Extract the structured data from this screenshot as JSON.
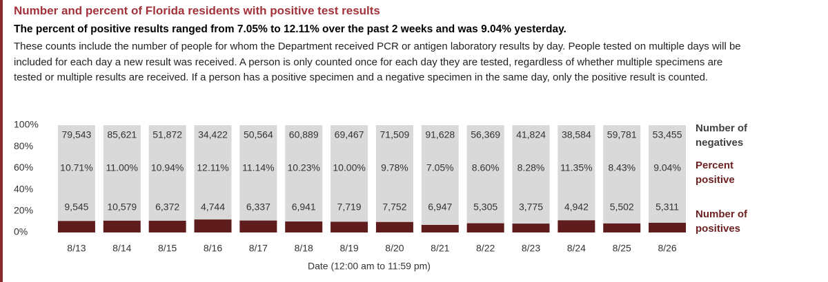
{
  "chart_data": {
    "type": "bar",
    "title": "Number and percent of Florida residents with positive test results",
    "subtitle": "The percent of positive results ranged from 7.05% to 12.11% over the past 2 weeks and was 9.04% yesterday.",
    "description": "These counts include the number of people for whom the Department received PCR or antigen laboratory results by day. People tested on multiple days will be included for each day a new result was received. A person is only counted once for each day they are tested, regardless of whether multiple specimens are tested or multiple results are received. If a person has a positive specimen and a negative specimen in the same day, only the positive result is counted.",
    "x_label": "Date (12:00 am to 11:59 pm)",
    "categories": [
      "8/13",
      "8/14",
      "8/15",
      "8/16",
      "8/17",
      "8/18",
      "8/19",
      "8/20",
      "8/21",
      "8/22",
      "8/23",
      "8/24",
      "8/25",
      "8/26"
    ],
    "series": [
      {
        "name": "Number of negatives",
        "color": "#d9d9d9",
        "values": [
          79543,
          85621,
          51872,
          34422,
          50564,
          60889,
          69467,
          71509,
          91628,
          56369,
          41824,
          38584,
          59781,
          53455
        ],
        "value_labels": [
          "79,543",
          "85,621",
          "51,872",
          "34,422",
          "50,564",
          "60,889",
          "69,467",
          "71,509",
          "91,628",
          "56,369",
          "41,824",
          "38,584",
          "59,781",
          "53,455"
        ]
      },
      {
        "name": "Percent positive",
        "color": "#5e1c1c",
        "values": [
          10.71,
          11.0,
          10.94,
          12.11,
          11.14,
          10.23,
          10.0,
          9.78,
          7.05,
          8.6,
          8.28,
          11.35,
          8.43,
          9.04
        ],
        "value_labels": [
          "10.71%",
          "11.00%",
          "10.94%",
          "12.11%",
          "11.14%",
          "10.23%",
          "10.00%",
          "9.78%",
          "7.05%",
          "8.60%",
          "8.28%",
          "11.35%",
          "8.43%",
          "9.04%"
        ]
      },
      {
        "name": "Number of positives",
        "color": "#5e1c1c",
        "values": [
          9545,
          10579,
          6372,
          4744,
          6337,
          6941,
          7719,
          7752,
          6947,
          5305,
          3775,
          4942,
          5502,
          5311
        ],
        "value_labels": [
          "9,545",
          "10,579",
          "6,372",
          "4,744",
          "6,337",
          "6,941",
          "7,719",
          "7,752",
          "6,947",
          "5,305",
          "3,775",
          "4,942",
          "5,502",
          "5,311"
        ]
      }
    ],
    "ylim": [
      0,
      100
    ],
    "yticks": [
      {
        "value": 0,
        "label": "0%"
      },
      {
        "value": 20,
        "label": "20%"
      },
      {
        "value": 40,
        "label": "40%"
      },
      {
        "value": 60,
        "label": "60%"
      },
      {
        "value": 80,
        "label": "80%"
      },
      {
        "value": 100,
        "label": "100%"
      }
    ]
  }
}
